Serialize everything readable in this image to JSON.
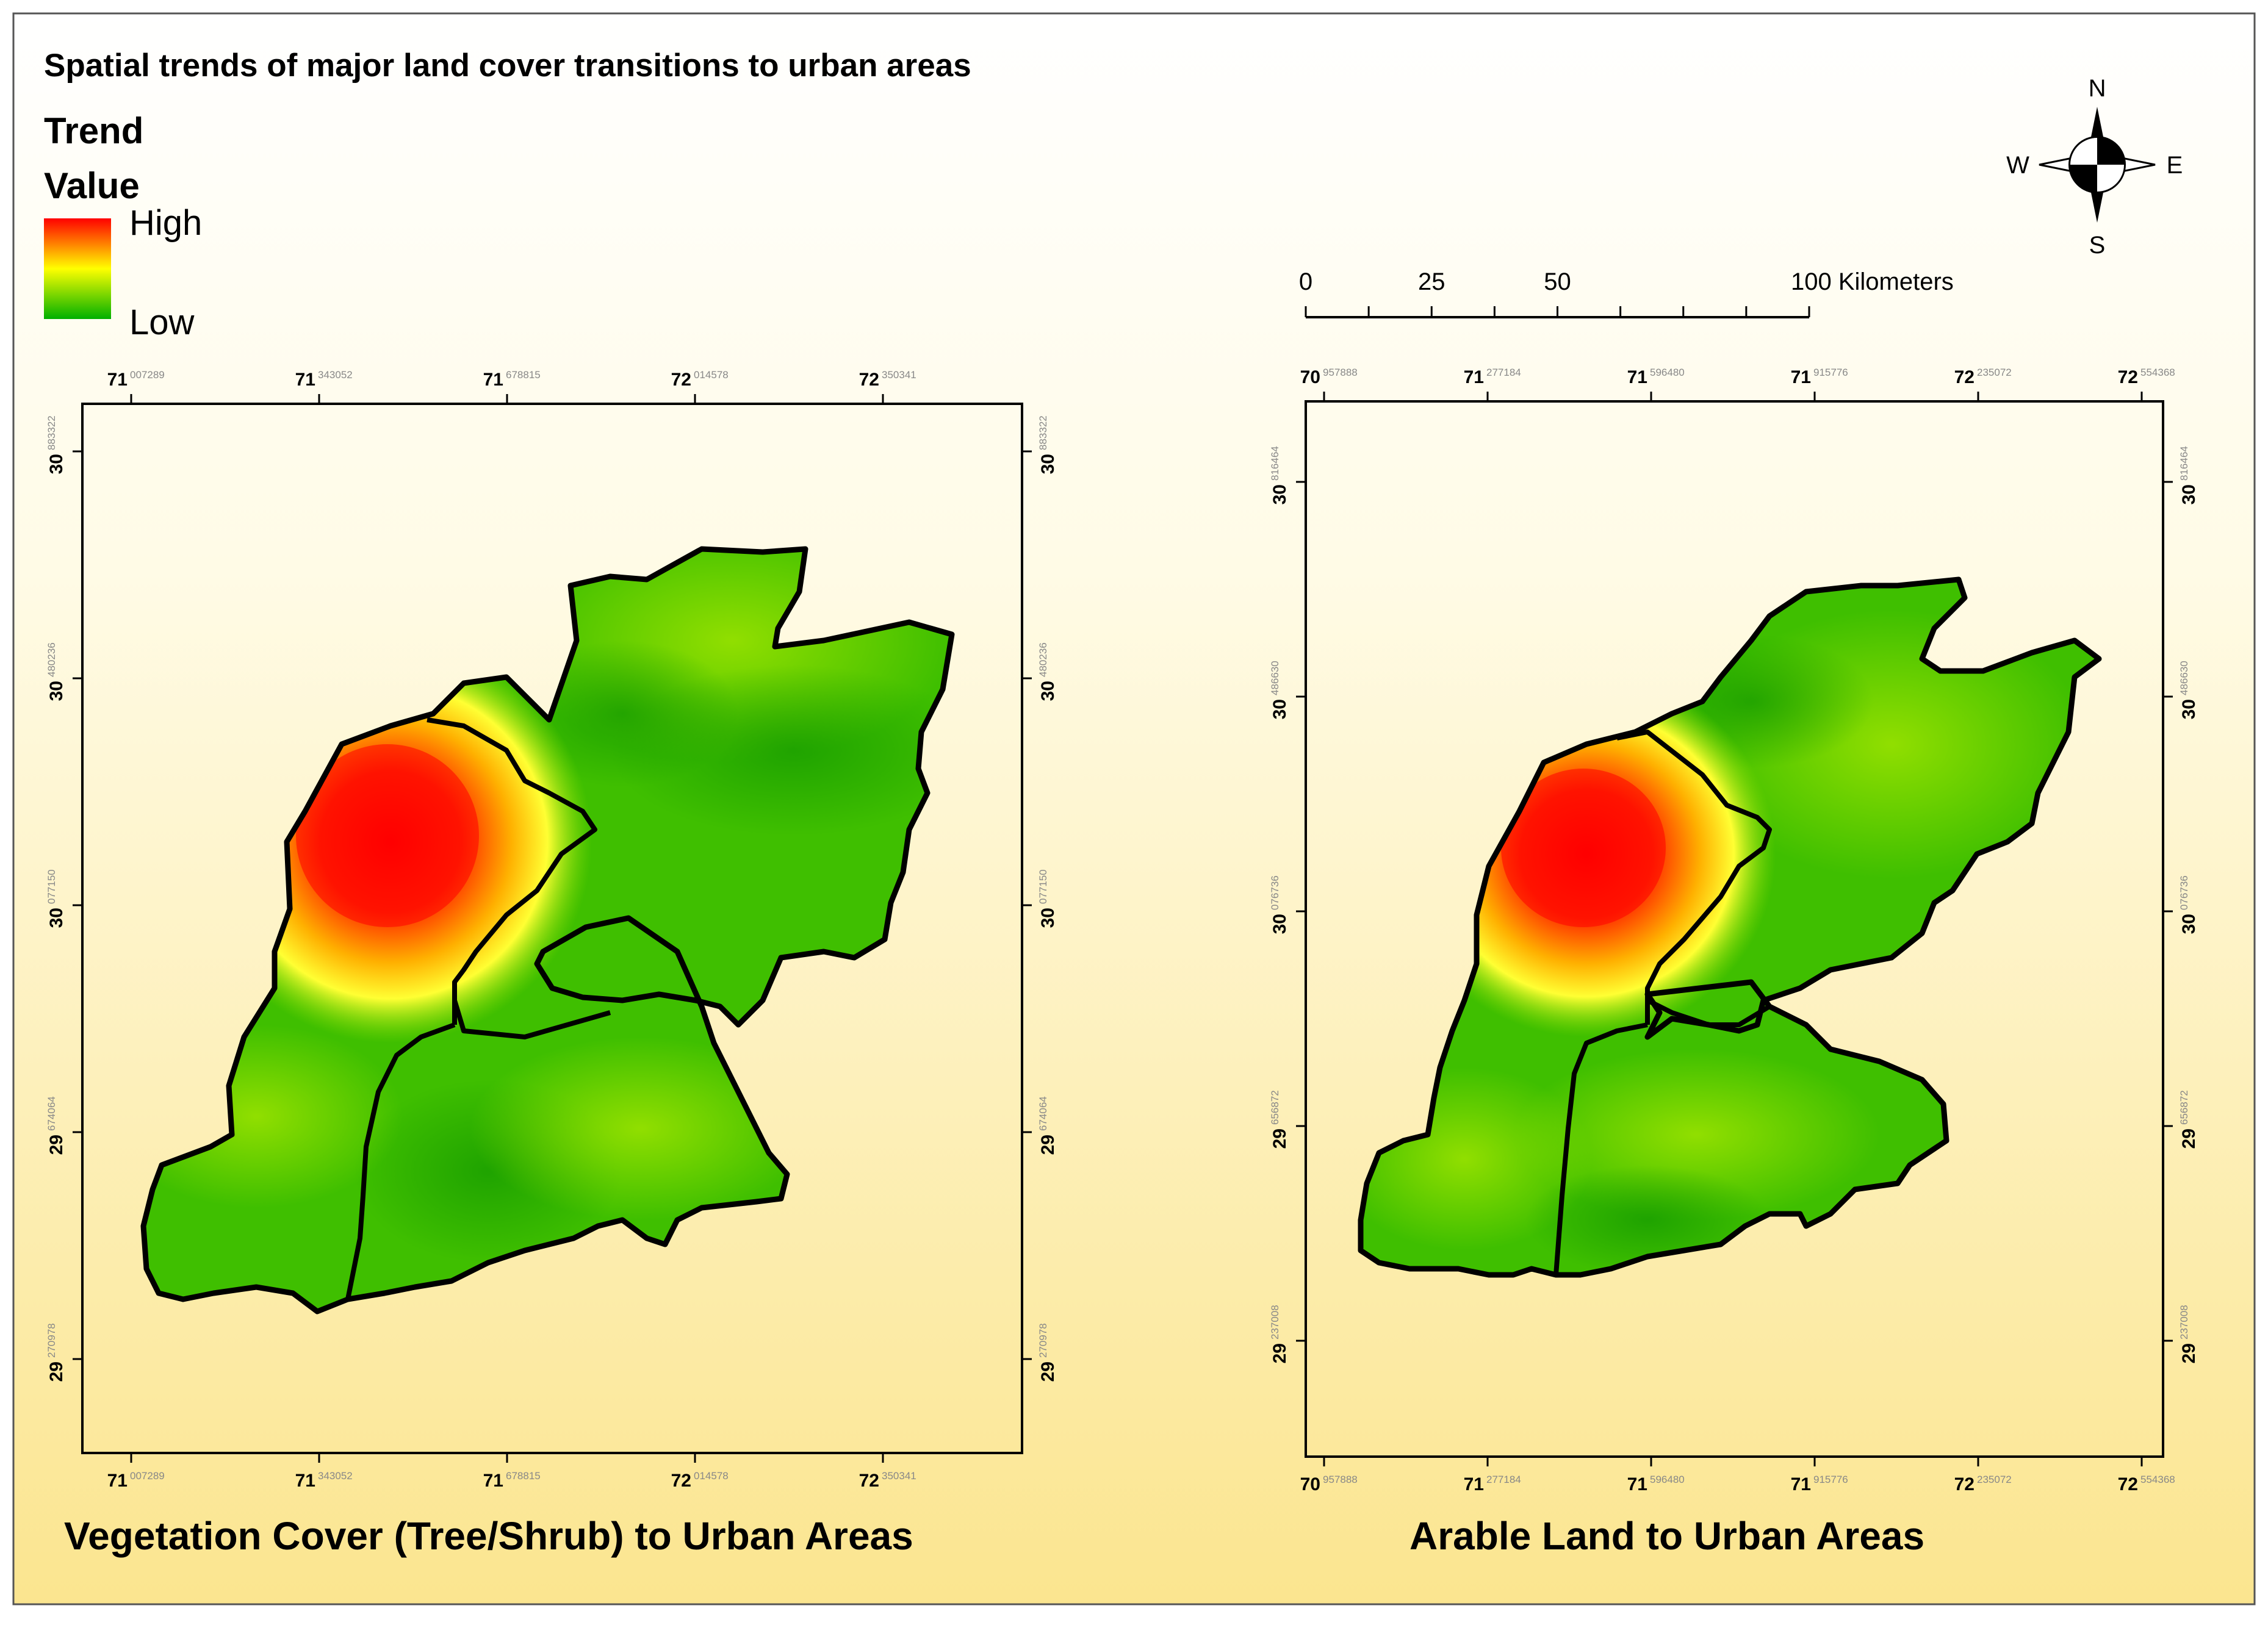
{
  "title": "Spatial trends of major land cover transitions to urban areas",
  "legend": {
    "heading_line1": "Trend",
    "heading_line2": "Value",
    "high_label": "High",
    "low_label": "Low",
    "colors": {
      "high": "#ff0000",
      "mid": "#ffff00",
      "low": "#00b000"
    }
  },
  "compass": {
    "n": "N",
    "s": "S",
    "e": "E",
    "w": "W"
  },
  "scalebar": {
    "labels": [
      "0",
      "25",
      "50",
      "100 Kilometers"
    ],
    "values": [
      0,
      25,
      50,
      100
    ]
  },
  "maps": [
    {
      "caption": "Vegetation Cover (Tree/Shrub) to Urban Areas",
      "x_ticks": [
        {
          "deg": "71",
          "dec": "007289"
        },
        {
          "deg": "71",
          "dec": "343052"
        },
        {
          "deg": "71",
          "dec": "678815"
        },
        {
          "deg": "72",
          "dec": "014578"
        },
        {
          "deg": "72",
          "dec": "350341"
        }
      ],
      "y_ticks": [
        {
          "deg": "30",
          "dec": "883322"
        },
        {
          "deg": "30",
          "dec": "480236"
        },
        {
          "deg": "30",
          "dec": "077150"
        },
        {
          "deg": "29",
          "dec": "674064"
        },
        {
          "deg": "29",
          "dec": "270978"
        }
      ]
    },
    {
      "caption": "Arable Land to Urban Areas",
      "x_ticks": [
        {
          "deg": "70",
          "dec": "957888"
        },
        {
          "deg": "71",
          "dec": "277184"
        },
        {
          "deg": "71",
          "dec": "596480"
        },
        {
          "deg": "71",
          "dec": "915776"
        },
        {
          "deg": "72",
          "dec": "235072"
        },
        {
          "deg": "72",
          "dec": "554368"
        }
      ],
      "y_ticks": [
        {
          "deg": "30",
          "dec": "816464"
        },
        {
          "deg": "30",
          "dec": "486630"
        },
        {
          "deg": "30",
          "dec": "076736"
        },
        {
          "deg": "29",
          "dec": "656872"
        },
        {
          "deg": "29",
          "dec": "237008"
        }
      ]
    }
  ]
}
